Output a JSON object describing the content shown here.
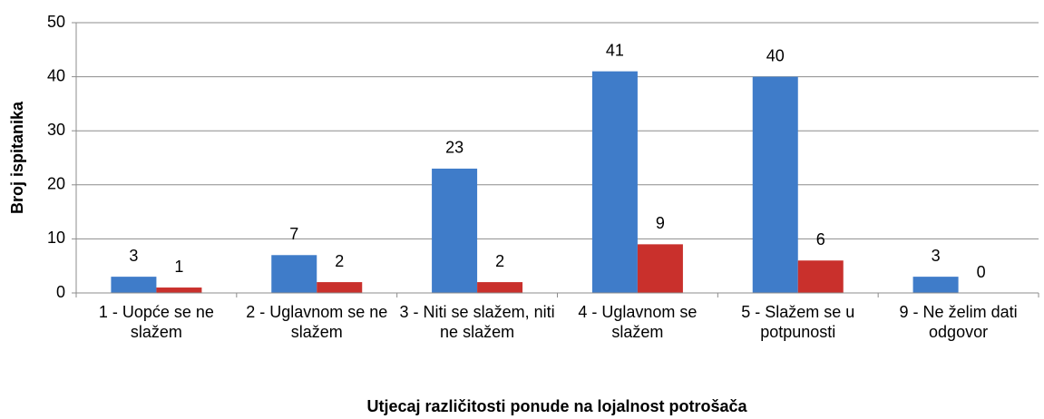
{
  "chart_data": {
    "type": "bar",
    "x_label": "Utjecaj različitosti ponude na lojalnost potrošača",
    "y_label": "Broj ispitanika",
    "categories": [
      "1 - Uopće se ne slažem",
      "2 - Uglavnom se ne slažem",
      "3 - Niti se slažem, niti ne slažem",
      "4 - Uglavnom se slažem",
      "5 - Slažem se u potpunosti",
      "9 - Ne želim dati odgovor"
    ],
    "series": [
      {
        "color": "#3f7cc9",
        "values": [
          3,
          7,
          23,
          41,
          40,
          3
        ]
      },
      {
        "color": "#c9302c",
        "values": [
          1,
          2,
          2,
          9,
          6,
          0
        ]
      }
    ],
    "ylim": [
      0,
      50
    ],
    "yticks": [
      0,
      10,
      20,
      30,
      40,
      50
    ],
    "grid": true
  }
}
